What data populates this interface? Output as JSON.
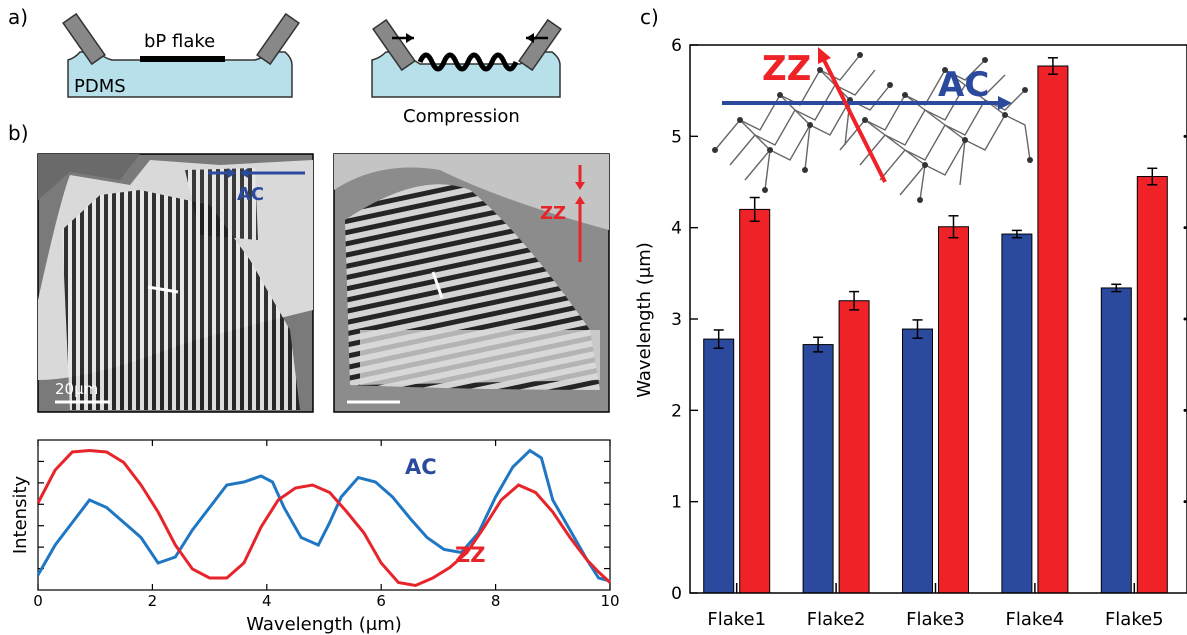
{
  "panels": {
    "a": {
      "label": "a)",
      "flake_label": "bP flake",
      "substrate_label": "PDMS",
      "compression_label": "Compression"
    },
    "b": {
      "label": "b)",
      "image_left_tag": "AC",
      "image_right_tag": "ZZ",
      "scalebar_label": "20μm"
    },
    "c": {
      "label": "c)",
      "inset_zz": "ZZ",
      "inset_ac": "AC"
    }
  },
  "colors": {
    "ac": "#2b4a9e",
    "zz": "#ee2227",
    "ac_line": "#1f77c4",
    "zz_line": "#e8242b",
    "pdms": "#b7e0ea"
  },
  "chart_data": [
    {
      "type": "line",
      "xlabel": "Wavelength (μm)",
      "ylabel": "Intensity",
      "xlim": [
        0,
        10
      ],
      "xticks": [
        0,
        2,
        4,
        6,
        8,
        10
      ],
      "ylim": [
        0,
        1
      ],
      "series": [
        {
          "name": "AC",
          "x": [
            0,
            0.3,
            0.6,
            0.9,
            1.2,
            1.5,
            1.8,
            2.1,
            2.4,
            2.7,
            3.0,
            3.3,
            3.6,
            3.9,
            4.1,
            4.3,
            4.6,
            4.9,
            5.1,
            5.3,
            5.6,
            5.9,
            6.2,
            6.5,
            6.8,
            7.1,
            7.4,
            7.7,
            8.0,
            8.3,
            8.6,
            8.8,
            9.0,
            9.3,
            9.6,
            9.8,
            10
          ],
          "y": [
            0.1,
            0.3,
            0.45,
            0.6,
            0.55,
            0.45,
            0.35,
            0.18,
            0.22,
            0.4,
            0.55,
            0.7,
            0.72,
            0.76,
            0.72,
            0.55,
            0.35,
            0.3,
            0.45,
            0.62,
            0.75,
            0.72,
            0.62,
            0.48,
            0.35,
            0.27,
            0.25,
            0.38,
            0.62,
            0.82,
            0.93,
            0.88,
            0.6,
            0.4,
            0.2,
            0.08,
            0.06
          ]
        },
        {
          "name": "ZZ",
          "x": [
            0,
            0.3,
            0.6,
            0.9,
            1.2,
            1.5,
            1.8,
            2.1,
            2.4,
            2.7,
            3.0,
            3.3,
            3.6,
            3.9,
            4.2,
            4.5,
            4.8,
            5.1,
            5.4,
            5.7,
            6.0,
            6.3,
            6.6,
            6.9,
            7.2,
            7.5,
            7.8,
            8.1,
            8.4,
            8.7,
            9.0,
            9.3,
            9.6,
            9.8,
            10
          ],
          "y": [
            0.58,
            0.8,
            0.92,
            0.93,
            0.92,
            0.85,
            0.7,
            0.52,
            0.3,
            0.14,
            0.08,
            0.08,
            0.18,
            0.42,
            0.6,
            0.68,
            0.7,
            0.65,
            0.52,
            0.38,
            0.18,
            0.05,
            0.03,
            0.08,
            0.15,
            0.25,
            0.42,
            0.6,
            0.7,
            0.65,
            0.52,
            0.35,
            0.2,
            0.12,
            0.05
          ]
        }
      ]
    },
    {
      "type": "bar",
      "ylabel": "Wavelength (μm)",
      "ylim": [
        0,
        6
      ],
      "yticks": [
        0,
        1,
        2,
        3,
        4,
        5,
        6
      ],
      "categories": [
        "Flake1",
        "Flake2",
        "Flake3",
        "Flake4",
        "Flake5"
      ],
      "series": [
        {
          "name": "AC",
          "values": [
            2.78,
            2.72,
            2.89,
            3.93,
            3.34
          ],
          "errors": [
            0.1,
            0.08,
            0.1,
            0.04,
            0.04
          ]
        },
        {
          "name": "ZZ",
          "values": [
            4.2,
            3.2,
            4.01,
            5.77,
            4.56
          ],
          "errors": [
            0.13,
            0.1,
            0.12,
            0.09,
            0.09
          ]
        }
      ]
    }
  ]
}
